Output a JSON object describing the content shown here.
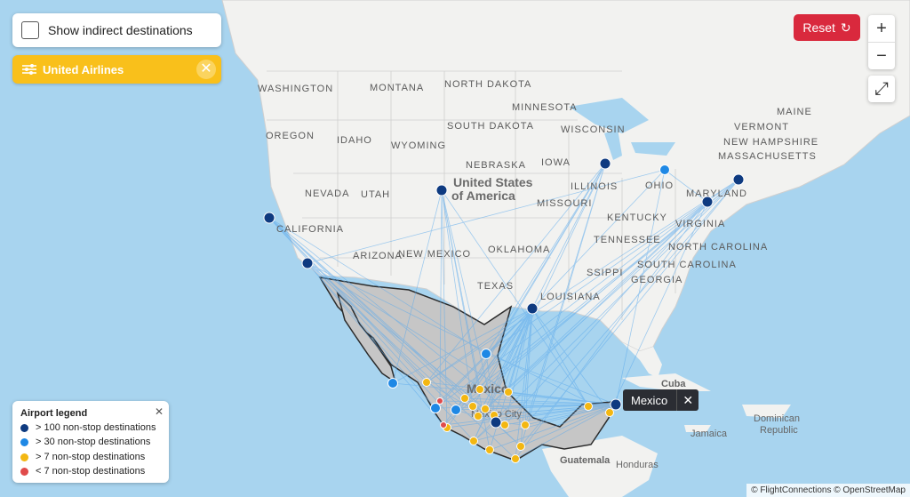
{
  "controls": {
    "indirect_label": "Show indirect destinations",
    "airline_label": "United Airlines",
    "airline_close": "✕",
    "reset_label": "Reset",
    "reset_icon": "↻",
    "zoom_in": "+",
    "zoom_out": "−",
    "fullscreen_icon": "⤢"
  },
  "legend": {
    "title": "Airport legend",
    "close": "✕",
    "items": [
      {
        "label": "> 100 non-stop destinations",
        "color": "#0e3a80"
      },
      {
        "label": "> 30 non-stop destinations",
        "color": "#1e88e5"
      },
      {
        "label": "> 7 non-stop destinations",
        "color": "#f3b712"
      },
      {
        "label": "< 7 non-stop destinations",
        "color": "#e04b4b"
      }
    ]
  },
  "tooltip": {
    "label": "Mexico",
    "close": "✕"
  },
  "attribution": "© FlightConnections © OpenStreetMap",
  "map_labels": {
    "states": [
      "WASHINGTON",
      "MONTANA",
      "NORTH DAKOTA",
      "MINNESOTA",
      "OREGON",
      "IDAHO",
      "WYOMING",
      "SOUTH DAKOTA",
      "WISCONSIN",
      "NEBRASKA",
      "IOWA",
      "ILLINOIS",
      "OHIO",
      "NEVADA",
      "UTAH",
      "MISSOURI",
      "KENTUCKY",
      "CALIFORNIA",
      "OKLAHOMA",
      "TENNESSEE",
      "ARIZONA",
      "NEW MEXICO",
      "NORTH CAROLINA",
      "VIRGINIA",
      "MARYLAND",
      "TEXAS",
      "LOUISIANA",
      "SSIPPI",
      "GEORGIA",
      "SOUTH CAROLINA",
      "MAINE",
      "VERMONT",
      "NEW HAMPSHIRE",
      "MASSACHUSETTS"
    ],
    "countries": [
      "United States",
      "of America",
      "Mexico",
      "Cuba",
      "Guatemala",
      "Honduras",
      "Jamaica",
      "Dominican",
      "Republic"
    ],
    "cities": [
      "Mexico City"
    ]
  }
}
